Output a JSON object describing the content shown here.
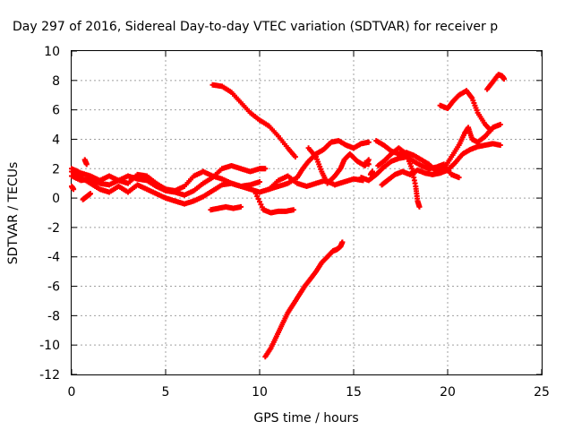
{
  "chart_data": {
    "type": "scatter",
    "title": "Day 297 of 2016, Sidereal Day-to-day VTEC variation (SDTVAR) for receiver p",
    "xlabel": "GPS time / hours",
    "ylabel": "SDTVAR / TECUs",
    "xlim": [
      0,
      25
    ],
    "ylim": [
      -12,
      10
    ],
    "xticks": [
      0,
      5,
      10,
      15,
      20,
      25
    ],
    "yticks": [
      -12,
      -10,
      -8,
      -6,
      -4,
      -2,
      0,
      2,
      4,
      6,
      8,
      10
    ],
    "grid": true,
    "marker": "+",
    "color": "#ff0000",
    "series": [
      {
        "points": [
          [
            0,
            2.0
          ],
          [
            0.5,
            1.7
          ],
          [
            1,
            1.5
          ],
          [
            1.5,
            1.2
          ],
          [
            2,
            1.5
          ],
          [
            2.5,
            1.2
          ],
          [
            3,
            1.5
          ],
          [
            3.5,
            1.3
          ],
          [
            4,
            1.2
          ],
          [
            4.5,
            0.8
          ],
          [
            5,
            0.5
          ],
          [
            5.5,
            0.4
          ],
          [
            6,
            0.2
          ],
          [
            6.5,
            0.5
          ],
          [
            7,
            1.0
          ],
          [
            7.5,
            1.4
          ],
          [
            8,
            2.0
          ],
          [
            8.5,
            2.2
          ],
          [
            9,
            2.0
          ],
          [
            9.5,
            1.8
          ],
          [
            10,
            2.0
          ],
          [
            10.3,
            2.0
          ]
        ]
      },
      {
        "points": [
          [
            0,
            1.8
          ],
          [
            0.5,
            1.4
          ],
          [
            1,
            1.0
          ],
          [
            1.5,
            0.6
          ],
          [
            2,
            0.4
          ],
          [
            2.5,
            0.8
          ],
          [
            3,
            0.4
          ],
          [
            3.5,
            0.9
          ],
          [
            4,
            0.6
          ],
          [
            4.5,
            0.3
          ],
          [
            5,
            0.0
          ],
          [
            5.5,
            -0.2
          ],
          [
            6,
            -0.4
          ],
          [
            6.5,
            -0.2
          ],
          [
            7,
            0.1
          ],
          [
            7.5,
            0.5
          ],
          [
            8,
            0.9
          ],
          [
            8.5,
            1.0
          ],
          [
            9,
            0.8
          ],
          [
            9.5,
            0.9
          ],
          [
            10,
            1.1
          ]
        ]
      },
      {
        "points": [
          [
            0,
            1.5
          ],
          [
            0.5,
            1.2
          ],
          [
            1,
            1.3
          ],
          [
            1.5,
            1.0
          ],
          [
            2,
            0.9
          ],
          [
            2.5,
            1.2
          ],
          [
            3,
            1.0
          ],
          [
            3.5,
            1.6
          ],
          [
            4,
            1.5
          ],
          [
            4.5,
            1.0
          ],
          [
            5,
            0.6
          ],
          [
            5.5,
            0.5
          ],
          [
            6,
            0.8
          ],
          [
            6.5,
            1.5
          ],
          [
            7,
            1.8
          ],
          [
            7.5,
            1.5
          ],
          [
            8,
            1.3
          ],
          [
            8.5,
            1.0
          ],
          [
            9,
            0.8
          ],
          [
            9.5,
            0.6
          ],
          [
            10,
            0.4
          ],
          [
            10.5,
            0.6
          ],
          [
            11,
            1.2
          ],
          [
            11.5,
            1.5
          ],
          [
            12,
            1.0
          ],
          [
            12.5,
            0.8
          ],
          [
            13,
            1.0
          ],
          [
            13.5,
            1.2
          ],
          [
            14,
            0.9
          ],
          [
            14.5,
            1.1
          ],
          [
            15,
            1.3
          ],
          [
            15.5,
            1.2
          ]
        ]
      },
      {
        "points": [
          [
            0.7,
            2.6
          ],
          [
            0.8,
            2.3
          ]
        ]
      },
      {
        "points": [
          [
            0,
            0.8
          ],
          [
            0.1,
            0.6
          ]
        ]
      },
      {
        "points": [
          [
            0.6,
            -0.1
          ],
          [
            0.8,
            0.1
          ],
          [
            1.0,
            0.3
          ]
        ]
      },
      {
        "points": [
          [
            7.4,
            -0.8
          ],
          [
            7.8,
            -0.7
          ],
          [
            8.2,
            -0.6
          ],
          [
            8.6,
            -0.7
          ],
          [
            9.0,
            -0.6
          ]
        ]
      },
      {
        "points": [
          [
            7.5,
            7.7
          ],
          [
            8,
            7.6
          ],
          [
            8.5,
            7.2
          ],
          [
            9,
            6.5
          ],
          [
            9.5,
            5.8
          ],
          [
            10,
            5.3
          ],
          [
            10.5,
            4.9
          ],
          [
            11,
            4.2
          ],
          [
            11.5,
            3.4
          ],
          [
            11.9,
            2.8
          ]
        ]
      },
      {
        "points": [
          [
            9.8,
            0.3
          ],
          [
            10.2,
            -0.8
          ],
          [
            10.6,
            -1.0
          ],
          [
            11,
            -0.9
          ],
          [
            11.4,
            -0.9
          ],
          [
            11.8,
            -0.8
          ]
        ]
      },
      {
        "points": [
          [
            10.3,
            -10.8
          ],
          [
            10.6,
            -10.2
          ],
          [
            10.9,
            -9.4
          ],
          [
            11.2,
            -8.6
          ],
          [
            11.5,
            -7.8
          ],
          [
            11.8,
            -7.2
          ],
          [
            12.1,
            -6.6
          ],
          [
            12.4,
            -6.0
          ],
          [
            12.7,
            -5.5
          ],
          [
            13,
            -5.0
          ],
          [
            13.3,
            -4.4
          ],
          [
            13.6,
            -4.0
          ],
          [
            13.9,
            -3.6
          ],
          [
            14.1,
            -3.5
          ],
          [
            14.3,
            -3.3
          ],
          [
            14.4,
            -3.0
          ]
        ]
      },
      {
        "points": [
          [
            10.5,
            0.6
          ],
          [
            11,
            0.8
          ],
          [
            11.5,
            1.0
          ],
          [
            12,
            1.4
          ],
          [
            12.3,
            2.0
          ],
          [
            12.6,
            2.5
          ],
          [
            13,
            3.0
          ],
          [
            13.4,
            3.3
          ],
          [
            13.8,
            3.8
          ],
          [
            14.2,
            3.9
          ],
          [
            14.6,
            3.6
          ],
          [
            15,
            3.4
          ],
          [
            15.4,
            3.7
          ],
          [
            15.8,
            3.8
          ]
        ]
      },
      {
        "points": [
          [
            12.6,
            3.4
          ],
          [
            13,
            2.8
          ],
          [
            13.3,
            1.8
          ],
          [
            13.6,
            1.0
          ],
          [
            14,
            1.5
          ],
          [
            14.3,
            2.0
          ],
          [
            14.5,
            2.6
          ],
          [
            14.8,
            3.0
          ],
          [
            15.2,
            2.5
          ],
          [
            15.6,
            2.2
          ],
          [
            15.8,
            2.6
          ]
        ]
      },
      {
        "points": [
          [
            15.4,
            1.4
          ],
          [
            15.8,
            1.2
          ],
          [
            16.2,
            1.6
          ],
          [
            16.6,
            2.1
          ],
          [
            17,
            2.5
          ],
          [
            17.4,
            2.7
          ],
          [
            17.8,
            2.8
          ],
          [
            18.2,
            2.5
          ],
          [
            18.6,
            2.2
          ],
          [
            19,
            2.0
          ],
          [
            19.4,
            2.1
          ],
          [
            19.8,
            2.3
          ],
          [
            20.2,
            1.6
          ],
          [
            20.6,
            1.4
          ]
        ]
      },
      {
        "points": [
          [
            16.3,
            2.2
          ],
          [
            16.6,
            2.5
          ],
          [
            17,
            3.0
          ],
          [
            17.4,
            3.4
          ],
          [
            17.8,
            3.0
          ],
          [
            18.1,
            2.0
          ],
          [
            18.3,
            0.8
          ],
          [
            18.4,
            -0.2
          ],
          [
            18.5,
            -0.6
          ]
        ]
      },
      {
        "points": [
          [
            16.5,
            0.9
          ],
          [
            16.8,
            1.2
          ],
          [
            17.2,
            1.6
          ],
          [
            17.6,
            1.8
          ],
          [
            18,
            1.6
          ],
          [
            18.4,
            1.9
          ],
          [
            18.8,
            1.7
          ],
          [
            19.2,
            1.6
          ],
          [
            19.6,
            1.7
          ],
          [
            20,
            1.9
          ],
          [
            20.4,
            2.4
          ],
          [
            20.8,
            3.0
          ],
          [
            21.2,
            3.3
          ],
          [
            21.6,
            3.5
          ],
          [
            22,
            3.6
          ],
          [
            22.4,
            3.7
          ],
          [
            22.8,
            3.6
          ]
        ]
      },
      {
        "points": [
          [
            16.2,
            3.9
          ],
          [
            16.6,
            3.6
          ],
          [
            17,
            3.2
          ],
          [
            17.4,
            3.0
          ],
          [
            17.8,
            3.1
          ],
          [
            18.2,
            2.9
          ],
          [
            18.6,
            2.6
          ],
          [
            19,
            2.3
          ],
          [
            19.4,
            1.8
          ],
          [
            19.8,
            2.0
          ],
          [
            20.2,
            2.8
          ],
          [
            20.6,
            3.6
          ],
          [
            20.9,
            4.4
          ],
          [
            21.1,
            4.8
          ],
          [
            21.3,
            4.0
          ],
          [
            21.6,
            3.8
          ],
          [
            22,
            4.2
          ],
          [
            22.4,
            4.8
          ],
          [
            22.8,
            5.0
          ]
        ]
      },
      {
        "points": [
          [
            19.6,
            6.3
          ],
          [
            20,
            6.1
          ],
          [
            20.3,
            6.6
          ],
          [
            20.6,
            7.0
          ],
          [
            21,
            7.3
          ],
          [
            21.3,
            6.8
          ],
          [
            21.6,
            5.8
          ],
          [
            22,
            5.0
          ],
          [
            22.3,
            4.6
          ]
        ]
      },
      {
        "points": [
          [
            22.1,
            7.4
          ],
          [
            22.4,
            7.9
          ],
          [
            22.7,
            8.4
          ],
          [
            22.9,
            8.3
          ],
          [
            23,
            8.1
          ]
        ]
      },
      {
        "points": [
          [
            15.6,
            2.4
          ],
          [
            15.8,
            2.3
          ]
        ]
      },
      {
        "points": [
          [
            15.9,
            1.6
          ],
          [
            16,
            1.8
          ]
        ]
      }
    ]
  }
}
